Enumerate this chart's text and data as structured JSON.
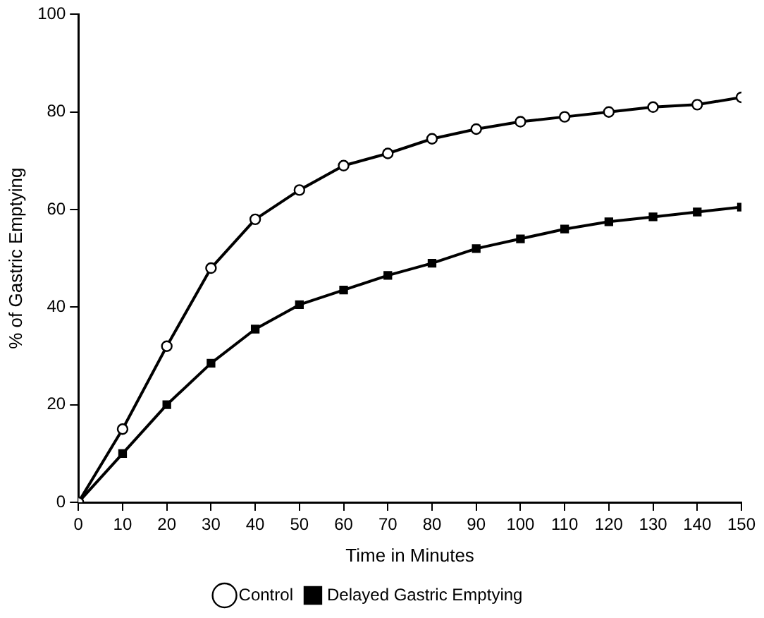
{
  "chart_data": {
    "type": "line",
    "xlabel": "Time in Minutes",
    "ylabel": "% of Gastric Emptying",
    "x": [
      0,
      10,
      20,
      30,
      40,
      50,
      60,
      70,
      80,
      90,
      100,
      110,
      120,
      130,
      140,
      150
    ],
    "series": [
      {
        "name": "Control",
        "color": "#000000",
        "marker": "circle",
        "values": [
          0,
          15,
          32,
          48,
          58,
          64,
          69,
          71.5,
          74.5,
          76.5,
          78,
          79,
          80,
          81,
          81.5,
          83
        ]
      },
      {
        "name": "Delayed Gastric Emptying",
        "color": "#000000",
        "marker": "square",
        "values": [
          0,
          10,
          20,
          28.5,
          35.5,
          40.5,
          43.5,
          46.5,
          49,
          52,
          54,
          56,
          57.5,
          58.5,
          59.5,
          60.5
        ]
      }
    ],
    "xlim": [
      0,
      150
    ],
    "xticks": [
      0,
      10,
      20,
      30,
      40,
      50,
      60,
      70,
      80,
      90,
      100,
      110,
      120,
      130,
      140,
      150
    ],
    "ylim": [
      0,
      100
    ],
    "yticks": [
      0,
      20,
      40,
      60,
      80,
      100
    ],
    "grid": false,
    "legend": "bottom",
    "line_style": "solid"
  }
}
